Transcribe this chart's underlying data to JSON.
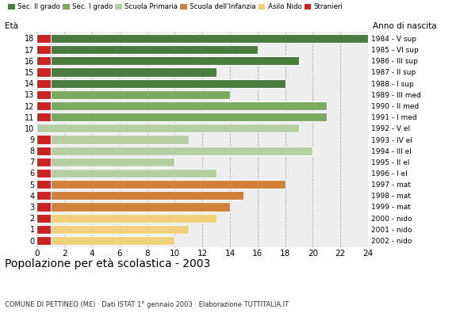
{
  "ages": [
    18,
    17,
    16,
    15,
    14,
    13,
    12,
    11,
    10,
    9,
    8,
    7,
    6,
    5,
    4,
    3,
    2,
    1,
    0
  ],
  "years": [
    "1984 - V sup",
    "1985 - VI sup",
    "1986 - III sup",
    "1987 - II sup",
    "1988 - I sup",
    "1989 - III med",
    "1990 - II med",
    "1991 - I med",
    "1992 - V el",
    "1993 - IV el",
    "1994 - III el",
    "1995 - II el",
    "1996 - I el",
    "1997 - mat",
    "1998 - mat",
    "1999 - mat",
    "2000 - nido",
    "2001 - nido",
    "2002 - nido"
  ],
  "values": [
    24,
    16,
    19,
    13,
    18,
    14,
    21,
    21,
    19,
    11,
    20,
    10,
    13,
    18,
    15,
    14,
    13,
    11,
    10
  ],
  "stranieri": [
    1,
    1,
    1,
    1,
    1,
    1,
    1,
    1,
    0,
    1,
    1,
    1,
    1,
    1,
    1,
    1,
    1,
    1,
    1
  ],
  "categories": [
    "Sec. II grado",
    "Sec. I grado",
    "Scuola Primaria",
    "Scuola dell'Infanzia",
    "Asilo Nido"
  ],
  "bar_colors": {
    "Sec. II grado": "#4a7c3f",
    "Sec. I grado": "#7aaa5e",
    "Scuola Primaria": "#b5cfa3",
    "Scuola dell'Infanzia": "#d2813a",
    "Asilo Nido": "#f0d07a"
  },
  "age_to_category": {
    "18": "Sec. II grado",
    "17": "Sec. II grado",
    "16": "Sec. II grado",
    "15": "Sec. II grado",
    "14": "Sec. II grado",
    "13": "Sec. I grado",
    "12": "Sec. I grado",
    "11": "Sec. I grado",
    "10": "Scuola Primaria",
    "9": "Scuola Primaria",
    "8": "Scuola Primaria",
    "7": "Scuola Primaria",
    "6": "Scuola Primaria",
    "5": "Scuola dell'Infanzia",
    "4": "Scuola dell'Infanzia",
    "3": "Scuola dell'Infanzia",
    "2": "Asilo Nido",
    "1": "Asilo Nido",
    "0": "Asilo Nido"
  },
  "stranieri_color": "#cc2222",
  "title": "Popolazione per età scolastica - 2003",
  "subtitle": "COMUNE DI PETTINEO (ME) · Dati ISTAT 1° gennaio 2003 · Elaborazione TUTTITALIA.IT",
  "xlabel_left": "Età",
  "xlabel_right": "Anno di nascita",
  "xlim": [
    0,
    24
  ],
  "xticks": [
    0,
    2,
    4,
    6,
    8,
    10,
    12,
    14,
    16,
    18,
    20,
    22,
    24
  ],
  "bg_color": "#ffffff",
  "plot_bg_color": "#eeeeee"
}
